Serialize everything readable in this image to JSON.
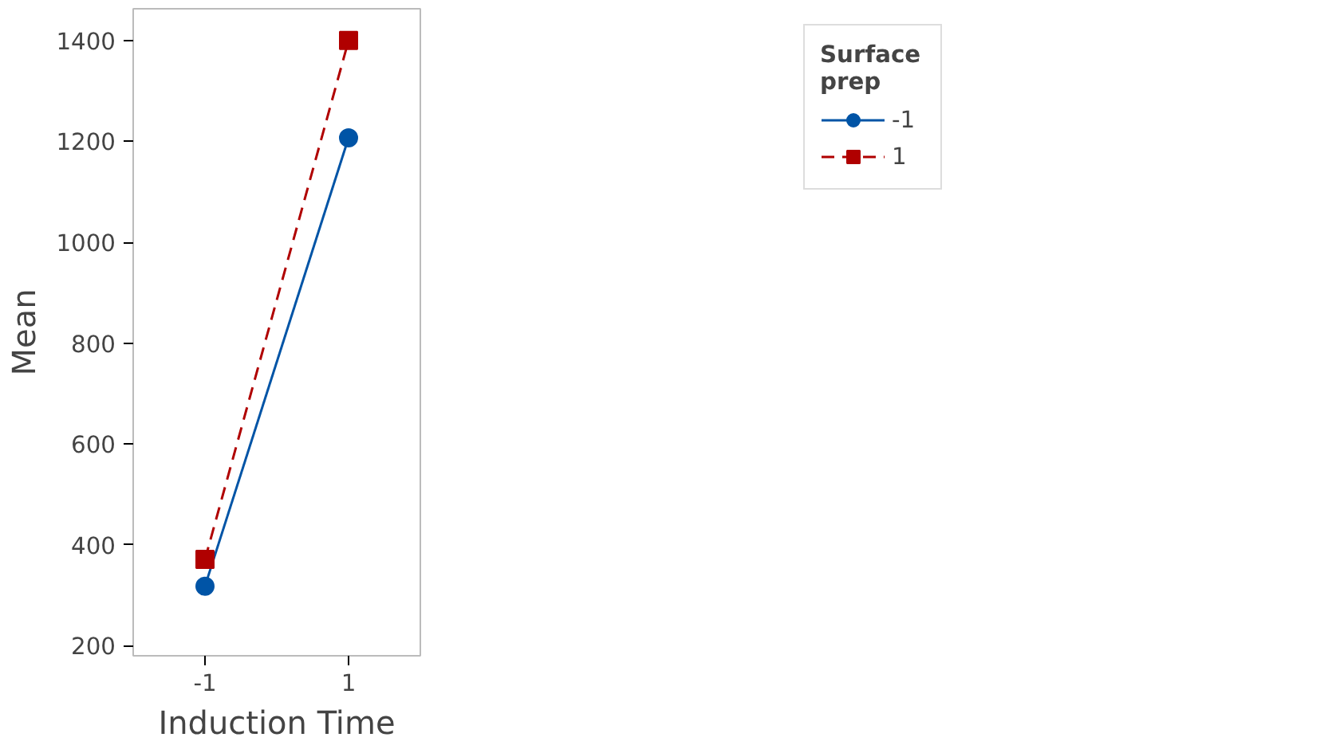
{
  "chart_data": {
    "type": "line",
    "xlabel": "Induction Time",
    "ylabel": "Mean",
    "legend_title": "Surface\nprep",
    "categories": [
      "-1",
      "1"
    ],
    "series": [
      {
        "name": "-1",
        "color": "#0054a6",
        "values": [
          318,
          1207
        ],
        "marker": "circle",
        "line_style": "solid"
      },
      {
        "name": "1",
        "color": "#b00000",
        "values": [
          371,
          1400
        ],
        "marker": "square",
        "line_style": "dashed"
      }
    ],
    "ylim": [
      180,
      1463
    ],
    "yticks": [
      200,
      400,
      600,
      800,
      1000,
      1200,
      1400
    ],
    "grid": false,
    "legend": "top right"
  }
}
